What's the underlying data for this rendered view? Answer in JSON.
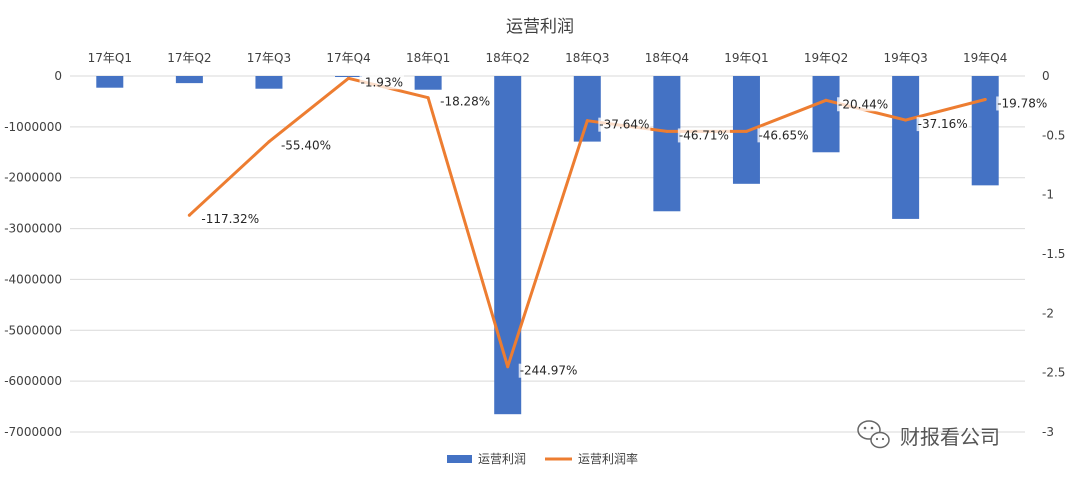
{
  "chart_data": {
    "type": "bar",
    "title": "运营利润",
    "categories": [
      "17年Q1",
      "17年Q2",
      "17年Q3",
      "17年Q4",
      "18年Q1",
      "18年Q2",
      "18年Q3",
      "18年Q4",
      "19年Q1",
      "19年Q2",
      "19年Q3",
      "19年Q4"
    ],
    "series": [
      {
        "name": "运营利润",
        "type": "bar",
        "axis": "left",
        "color": "#4472C4",
        "values": [
          -230000,
          -140000,
          -250000,
          -20000,
          -270000,
          -6650000,
          -1290000,
          -2660000,
          -2120000,
          -1500000,
          -2810000,
          -2150000
        ]
      },
      {
        "name": "运营利润率",
        "type": "line",
        "axis": "right",
        "color": "#ED7D31",
        "values": [
          null,
          -1.1732,
          -0.554,
          -0.0193,
          -0.1828,
          -2.4497,
          -0.3764,
          -0.4671,
          -0.4665,
          -0.2044,
          -0.3716,
          -0.1978
        ],
        "labels": [
          "",
          "-117.32%",
          "-55.40%",
          "-1.93%",
          "-18.28%",
          "-244.97%",
          "-37.64%",
          "-46.71%",
          "-46.65%",
          "-20.44%",
          "-37.16%",
          "-19.78%"
        ]
      }
    ],
    "y_left": {
      "lim": [
        -7000000,
        0
      ],
      "ticks": [
        0,
        -1000000,
        -2000000,
        -3000000,
        -4000000,
        -5000000,
        -6000000,
        -7000000
      ],
      "tick_labels": [
        "0",
        "-1000000",
        "-2000000",
        "-3000000",
        "-4000000",
        "-5000000",
        "-6000000",
        "-7000000"
      ]
    },
    "y_right": {
      "lim": [
        -3,
        0
      ],
      "ticks": [
        0,
        -0.5,
        -1,
        -1.5,
        -2,
        -2.5,
        -3
      ],
      "tick_labels": [
        "0",
        "-0.5",
        "-1",
        "-1.5",
        "-2",
        "-2.5",
        "-3"
      ]
    },
    "x_axis_position": "top",
    "grid": true,
    "legend": {
      "position": "bottom",
      "entries": [
        "运营利润",
        "运营利润率"
      ]
    }
  },
  "watermark": {
    "icon": "wechat-icon",
    "text": "财报看公司"
  },
  "colors": {
    "bar": "#4472C4",
    "line": "#ED7D31",
    "grid": "#D9D9D9"
  }
}
